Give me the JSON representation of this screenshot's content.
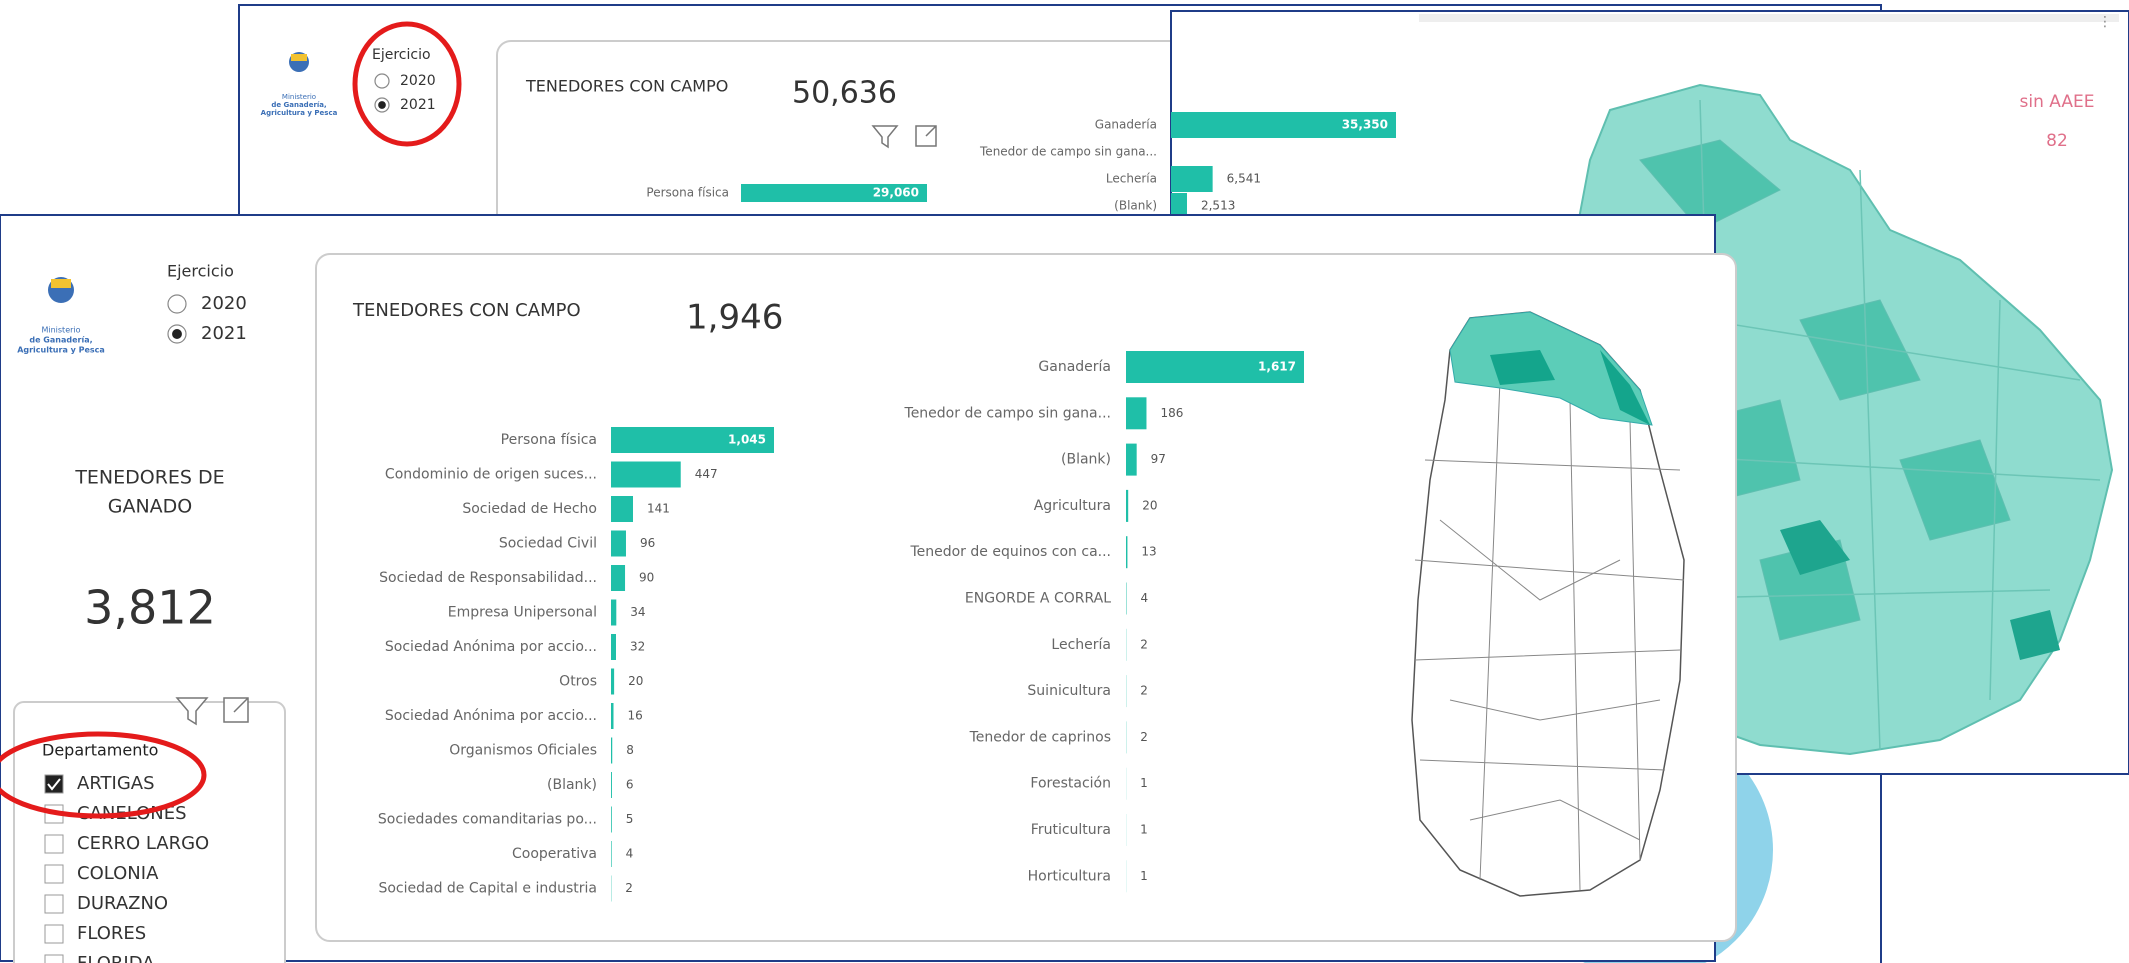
{
  "back": {
    "logo": [
      "Ministerio",
      "de Ganadería,",
      "Agricultura y Pesca"
    ],
    "slicer": {
      "title": "Ejercicio",
      "options": [
        "2020",
        "2021"
      ],
      "selected": 1
    },
    "card": {
      "title": "TENEDORES CON CAMPO",
      "value": "50,636"
    },
    "chart_left": {
      "type": "bar",
      "categories": [
        "Persona física"
      ],
      "values": [
        29060
      ],
      "value_labels": [
        "29,060"
      ],
      "color": "#1fbfa8"
    },
    "chart_right": {
      "type": "bar",
      "categories": [
        "Ganadería",
        "Tenedor de campo sin gana...",
        "Lechería",
        "(Blank)"
      ],
      "values": [
        35350,
        null,
        6541,
        2513
      ],
      "value_labels": [
        "35,350",
        null,
        "6,541",
        "2,513"
      ],
      "color": "#1fbfa8"
    },
    "map": {
      "label": "sin AAEE",
      "value": "82"
    }
  },
  "front": {
    "logo": [
      "Ministerio",
      "de Ganadería,",
      "Agricultura y Pesca"
    ],
    "slicer": {
      "title": "Ejercicio",
      "options": [
        "2020",
        "2021"
      ],
      "selected": 1
    },
    "kpi": {
      "title_lines": [
        "TENEDORES DE",
        "GANADO"
      ],
      "value": "3,812"
    },
    "card": {
      "title": "TENEDORES CON CAMPO",
      "value": "1,946"
    },
    "chart_left": {
      "type": "bar",
      "categories": [
        "Persona física",
        "Condominio de origen suces...",
        "Sociedad de Hecho",
        "Sociedad Civil",
        "Sociedad de Responsabilidad...",
        "Empresa Unipersonal",
        "Sociedad Anónima por accio...",
        "Otros",
        "Sociedad Anónima por accio...",
        "Organismos Oficiales",
        "(Blank)",
        "Sociedades comanditarias po...",
        "Cooperativa",
        "Sociedad de Capital e industria"
      ],
      "values": [
        1045,
        447,
        141,
        96,
        90,
        34,
        32,
        20,
        16,
        8,
        6,
        5,
        4,
        2
      ],
      "value_labels": [
        "1,045",
        "447",
        "141",
        "96",
        "90",
        "34",
        "32",
        "20",
        "16",
        "8",
        "6",
        "5",
        "4",
        "2"
      ],
      "color": "#1fbfa8"
    },
    "chart_right": {
      "type": "bar",
      "categories": [
        "Ganadería",
        "Tenedor de campo sin gana...",
        "(Blank)",
        "Agricultura",
        "Tenedor de equinos con ca...",
        "ENGORDE A CORRAL",
        "Lechería",
        "Suinicultura",
        "Tenedor de caprinos",
        "Forestación",
        "Fruticultura",
        "Horticultura"
      ],
      "values": [
        1617,
        186,
        97,
        20,
        13,
        4,
        2,
        2,
        2,
        1,
        1,
        1
      ],
      "value_labels": [
        "1,617",
        "186",
        "97",
        "20",
        "13",
        "4",
        "2",
        "2",
        "2",
        "1",
        "1",
        "1"
      ],
      "color": "#1fbfa8"
    },
    "filter": {
      "title": "Departamento",
      "items": [
        "ARTIGAS",
        "CANELONES",
        "CERRO LARGO",
        "COLONIA",
        "DURAZNO",
        "FLORES",
        "FLORIDA"
      ],
      "checked": [
        0
      ]
    }
  }
}
